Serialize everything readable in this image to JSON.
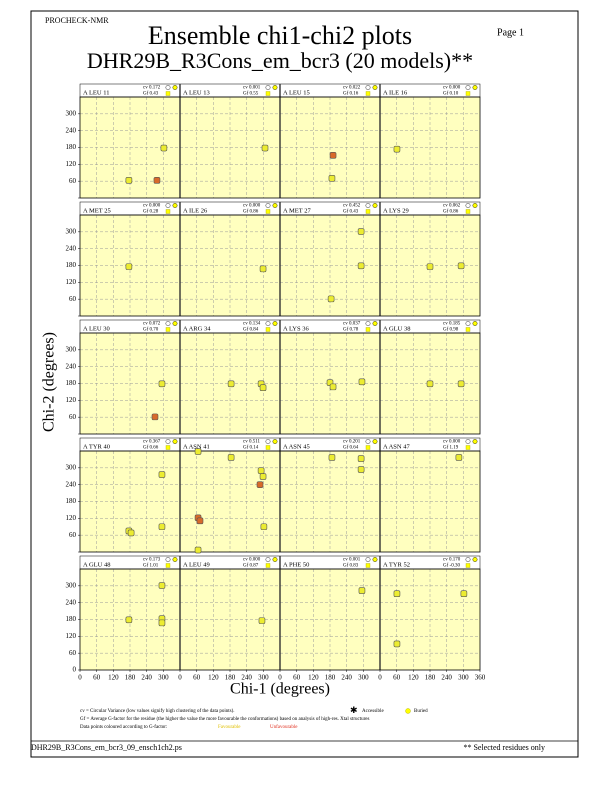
{
  "header": {
    "program": "PROCHECK-NMR",
    "title": "Ensemble chi1-chi2 plots",
    "subtitle": "DHR29B_R3Cons_em_bcr3 (20 models)**",
    "page": "Page  1"
  },
  "chart_data": {
    "type": "scatter",
    "x_label": "Chi-1 (degrees)",
    "y_label": "Chi-2 (degrees)",
    "xlim": [
      0,
      360
    ],
    "xticks": [
      0,
      60,
      120,
      180,
      240,
      300,
      360
    ],
    "ylim": [
      0,
      360
    ],
    "yticks": [
      0,
      60,
      120,
      180,
      240,
      300
    ],
    "grid": true,
    "background": "#ffffbf",
    "panels": [
      {
        "title": "A LEU 11",
        "cv": "cv 0.172",
        "gf": "Gf 0.43",
        "points": [
          {
            "chi1": 302,
            "chi2": 178,
            "color": "#ecec30"
          },
          {
            "chi1": 176,
            "chi2": 63,
            "color": "#ecec30"
          },
          {
            "chi1": 277,
            "chi2": 63,
            "color": "#d86a2a"
          }
        ]
      },
      {
        "title": "A LEU 13",
        "cv": "cv 0.001",
        "gf": "Gf 0.55",
        "points": [
          {
            "chi1": 306,
            "chi2": 178,
            "color": "#ecec30"
          }
        ]
      },
      {
        "title": "A LEU 15",
        "cv": "cv 0.022",
        "gf": "Gf 0.16",
        "points": [
          {
            "chi1": 191,
            "chi2": 152,
            "color": "#d86a2a"
          },
          {
            "chi1": 187,
            "chi2": 70,
            "color": "#ecec30"
          }
        ]
      },
      {
        "title": "A ILE 16",
        "cv": "cv 0.000",
        "gf": "Gf 0.10",
        "points": [
          {
            "chi1": 61,
            "chi2": 174,
            "color": "#ecec30"
          }
        ]
      },
      {
        "title": "A MET 25",
        "cv": "cv 0.000",
        "gf": "Gf 0.28",
        "points": [
          {
            "chi1": 176,
            "chi2": 176,
            "color": "#ecec30"
          }
        ]
      },
      {
        "title": "A ILE 26",
        "cv": "cv 0.000",
        "gf": "Gf 0.86",
        "points": [
          {
            "chi1": 299,
            "chi2": 168,
            "color": "#ecec30"
          }
        ]
      },
      {
        "title": "A MET 27",
        "cv": "cv 0.452",
        "gf": "Gf 0.43",
        "points": [
          {
            "chi1": 184,
            "chi2": 61,
            "color": "#ecec30"
          },
          {
            "chi1": 292,
            "chi2": 301,
            "color": "#ecec30"
          },
          {
            "chi1": 292,
            "chi2": 179,
            "color": "#ecec30"
          }
        ]
      },
      {
        "title": "A LYS 29",
        "cv": "cv 0.062",
        "gf": "Gf 0.86",
        "points": [
          {
            "chi1": 180,
            "chi2": 176,
            "color": "#ecec30"
          },
          {
            "chi1": 292,
            "chi2": 179,
            "color": "#ecec30"
          }
        ]
      },
      {
        "title": "A LEU 30",
        "cv": "cv 0.072",
        "gf": "Gf 0.70",
        "points": [
          {
            "chi1": 295,
            "chi2": 179,
            "color": "#ecec30"
          },
          {
            "chi1": 270,
            "chi2": 61,
            "color": "#d86a2a"
          }
        ]
      },
      {
        "title": "A ARG 34",
        "cv": "cv 0.134",
        "gf": "Gf 0.84",
        "points": [
          {
            "chi1": 184,
            "chi2": 179,
            "color": "#ecec30"
          },
          {
            "chi1": 292,
            "chi2": 179,
            "color": "#ecec30"
          },
          {
            "chi1": 299,
            "chi2": 165,
            "color": "#ecec30"
          }
        ]
      },
      {
        "title": "A LYS 36",
        "cv": "cv 0.037",
        "gf": "Gf 0.78",
        "points": [
          {
            "chi1": 180,
            "chi2": 183,
            "color": "#ecec30"
          },
          {
            "chi1": 191,
            "chi2": 168,
            "color": "#ecec30"
          },
          {
            "chi1": 295,
            "chi2": 186,
            "color": "#ecec30"
          }
        ]
      },
      {
        "title": "A GLU 38",
        "cv": "cv 0.185",
        "gf": "Gf 0.98",
        "points": [
          {
            "chi1": 180,
            "chi2": 179,
            "color": "#ecec30"
          },
          {
            "chi1": 292,
            "chi2": 179,
            "color": "#ecec30"
          }
        ]
      },
      {
        "title": "A TYR 40",
        "cv": "cv 0.367",
        "gf": "Gf 0.66",
        "points": [
          {
            "chi1": 295,
            "chi2": 276,
            "color": "#ecec30"
          },
          {
            "chi1": 176,
            "chi2": 75,
            "color": "#ecec30"
          },
          {
            "chi1": 184,
            "chi2": 68,
            "color": "#ecec30"
          },
          {
            "chi1": 295,
            "chi2": 90,
            "color": "#ecec30"
          }
        ]
      },
      {
        "title": "A ASN 41",
        "cv": "cv 0.511",
        "gf": "Gf 0.14",
        "points": [
          {
            "chi1": 65,
            "chi2": 358,
            "color": "#ecec30"
          },
          {
            "chi1": 184,
            "chi2": 337,
            "color": "#ecec30"
          },
          {
            "chi1": 292,
            "chi2": 290,
            "color": "#ecec30"
          },
          {
            "chi1": 299,
            "chi2": 269,
            "color": "#ecec30"
          },
          {
            "chi1": 288,
            "chi2": 240,
            "color": "#d86a2a"
          },
          {
            "chi1": 65,
            "chi2": 122,
            "color": "#d86a2a"
          },
          {
            "chi1": 72,
            "chi2": 111,
            "color": "#d86a2a"
          },
          {
            "chi1": 302,
            "chi2": 90,
            "color": "#ecec30"
          },
          {
            "chi1": 65,
            "chi2": 7,
            "color": "#ecec30"
          }
        ]
      },
      {
        "title": "A ASN 45",
        "cv": "cv 0.201",
        "gf": "Gf 0.64",
        "points": [
          {
            "chi1": 187,
            "chi2": 337,
            "color": "#ecec30"
          },
          {
            "chi1": 292,
            "chi2": 333,
            "color": "#ecec30"
          },
          {
            "chi1": 292,
            "chi2": 294,
            "color": "#ecec30"
          }
        ]
      },
      {
        "title": "A ASN 47",
        "cv": "cv 0.000",
        "gf": "Gf 1.19",
        "points": [
          {
            "chi1": 284,
            "chi2": 337,
            "color": "#ecec30"
          }
        ]
      },
      {
        "title": "A GLU 48",
        "cv": "cv 0.173",
        "gf": "Gf 1.01",
        "points": [
          {
            "chi1": 176,
            "chi2": 179,
            "color": "#ecec30"
          },
          {
            "chi1": 295,
            "chi2": 301,
            "color": "#ecec30"
          },
          {
            "chi1": 295,
            "chi2": 183,
            "color": "#ecec30"
          },
          {
            "chi1": 295,
            "chi2": 168,
            "color": "#ecec30"
          }
        ]
      },
      {
        "title": "A LEU 49",
        "cv": "cv 0.000",
        "gf": "Gf 0.87",
        "points": [
          {
            "chi1": 295,
            "chi2": 176,
            "color": "#ecec30"
          }
        ]
      },
      {
        "title": "A PHE 50",
        "cv": "cv 0.001",
        "gf": "Gf 0.83",
        "points": [
          {
            "chi1": 295,
            "chi2": 283,
            "color": "#ecec30"
          }
        ]
      },
      {
        "title": "A TYR 52",
        "cv": "cv 0.170",
        "gf": "Gf -0.30",
        "points": [
          {
            "chi1": 61,
            "chi2": 272,
            "color": "#ecec30"
          },
          {
            "chi1": 302,
            "chi2": 272,
            "color": "#ecec30"
          },
          {
            "chi1": 61,
            "chi2": 93,
            "color": "#ecec30"
          }
        ]
      }
    ]
  },
  "notes": {
    "cv": "cv = Circular Variance (low values signify high clustering of the data points).",
    "accessible": "Accessible",
    "buried": "Buried",
    "gf": "Gf = Average G-factor for the residue (the higher the value the more favourable the conformations) based on analysis of high-res. Xtal structures",
    "colouring": "Data points coloured according to G-factor:",
    "favourable": "Favourable",
    "unfavourable": "Unfavourable"
  },
  "footer": {
    "file": "DHR29B_R3Cons_em_bcr3_09_ensch1ch2.ps",
    "note": "** Selected residues only"
  }
}
